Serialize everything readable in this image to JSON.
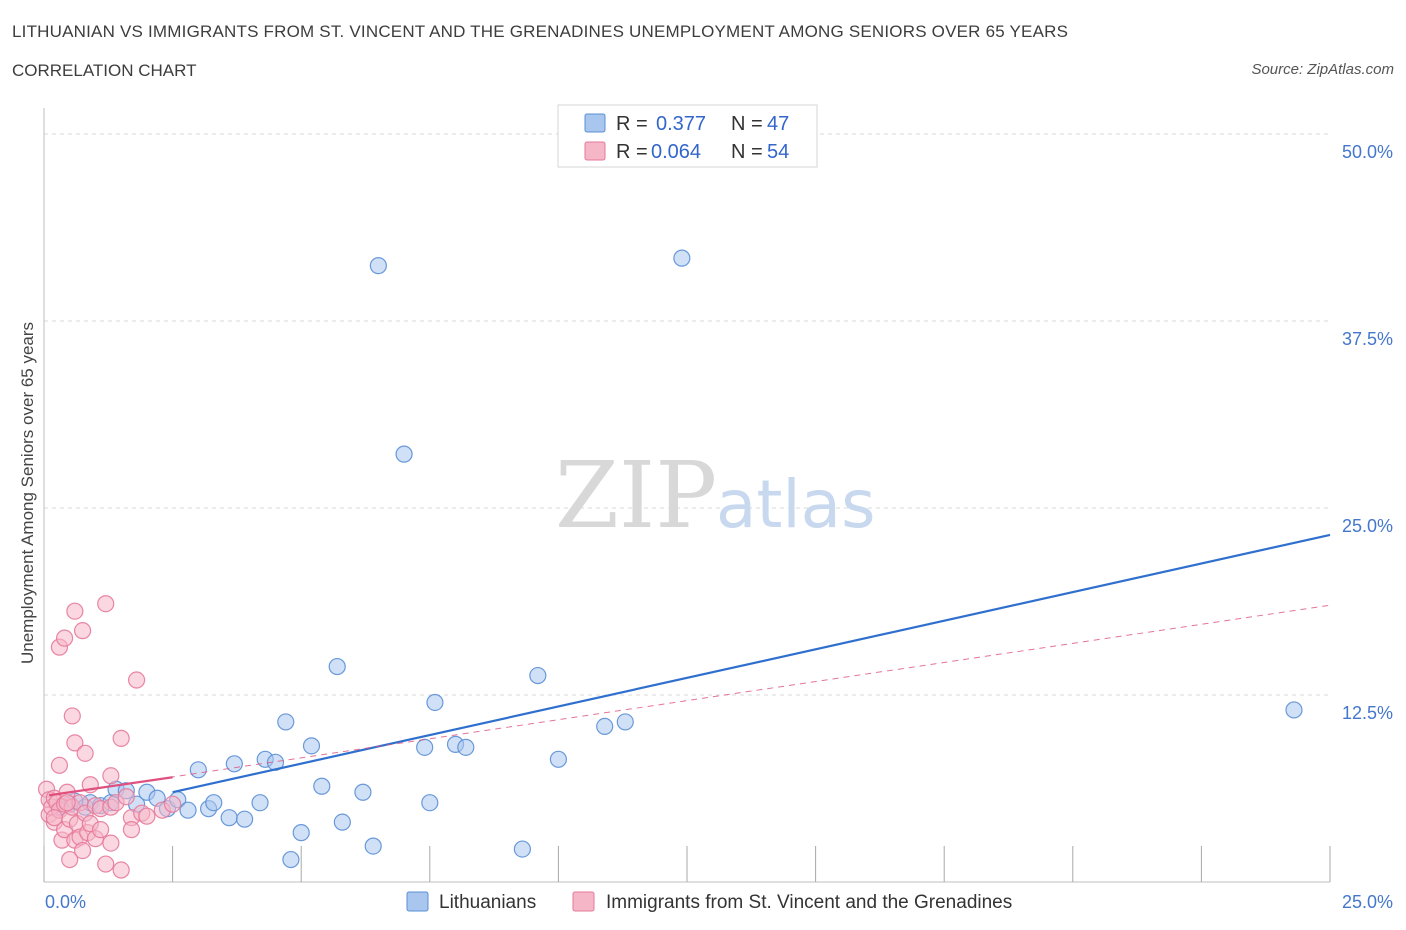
{
  "header": {
    "title": "LITHUANIAN VS IMMIGRANTS FROM ST. VINCENT AND THE GRENADINES UNEMPLOYMENT AMONG SENIORS OVER 65 YEARS",
    "subtitle": "CORRELATION CHART",
    "source": "Source: ZipAtlas.com"
  },
  "watermark": {
    "zip": "ZIP",
    "atlas": "atlas"
  },
  "colors": {
    "blue_fill": "#a9c6ee",
    "blue_stroke": "#5b8fd6",
    "blue_line": "#2f6fce",
    "pink_fill": "#f5b6c8",
    "pink_stroke": "#e57a9a",
    "pink_line": "#e0507e",
    "grid": "#d9d9d9",
    "axis_text": "#4477cc"
  },
  "legend": {
    "rows": [
      {
        "r_label": "R =",
        "r_value": "0.377",
        "n_label": "N =",
        "n_value": "47"
      },
      {
        "r_label": "R =",
        "r_value": "0.064",
        "n_label": "N =",
        "n_value": "54"
      }
    ]
  },
  "chart_data": {
    "type": "scatter",
    "title": "LITHUANIAN VS IMMIGRANTS FROM ST. VINCENT AND THE GRENADINES UNEMPLOYMENT AMONG SENIORS OVER 65 YEARS",
    "xlabel": "",
    "ylabel": "Unemployment Among Seniors over 65 years",
    "xlim": [
      0,
      25
    ],
    "ylim": [
      0,
      50
    ],
    "x_tick_labels": [
      "0.0%",
      "25.0%"
    ],
    "y_ticks": [
      12.5,
      25,
      37.5,
      50
    ],
    "y_tick_labels": [
      "12.5%",
      "25.0%",
      "37.5%",
      "50.0%"
    ],
    "grid": true,
    "series": [
      {
        "name": "Lithuanians",
        "color": "#a9c6ee",
        "r": 0.377,
        "n": 47,
        "trend": {
          "x": [
            2.5,
            25
          ],
          "y": [
            6.0,
            23.2
          ],
          "style": "solid"
        },
        "points": [
          [
            0.3,
            5.0
          ],
          [
            0.5,
            5.2
          ],
          [
            0.6,
            5.4
          ],
          [
            0.8,
            5.0
          ],
          [
            0.9,
            5.3
          ],
          [
            1.1,
            5.1
          ],
          [
            1.3,
            5.3
          ],
          [
            1.4,
            6.2
          ],
          [
            1.6,
            6.1
          ],
          [
            1.8,
            5.2
          ],
          [
            2.0,
            6.0
          ],
          [
            2.2,
            5.6
          ],
          [
            2.4,
            4.9
          ],
          [
            2.6,
            5.5
          ],
          [
            2.8,
            4.8
          ],
          [
            3.0,
            7.5
          ],
          [
            3.2,
            4.9
          ],
          [
            3.3,
            5.3
          ],
          [
            3.6,
            4.3
          ],
          [
            3.7,
            7.9
          ],
          [
            3.9,
            4.2
          ],
          [
            4.2,
            5.3
          ],
          [
            4.3,
            8.2
          ],
          [
            4.5,
            8.0
          ],
          [
            4.7,
            10.7
          ],
          [
            4.8,
            1.5
          ],
          [
            5.0,
            3.3
          ],
          [
            5.2,
            9.1
          ],
          [
            5.4,
            6.4
          ],
          [
            5.7,
            14.4
          ],
          [
            5.8,
            4.0
          ],
          [
            6.2,
            6.0
          ],
          [
            6.4,
            2.4
          ],
          [
            6.5,
            41.2
          ],
          [
            7.0,
            28.6
          ],
          [
            7.4,
            9.0
          ],
          [
            7.5,
            5.3
          ],
          [
            7.6,
            12.0
          ],
          [
            8.0,
            9.2
          ],
          [
            8.2,
            9.0
          ],
          [
            9.3,
            2.2
          ],
          [
            9.6,
            13.8
          ],
          [
            10.0,
            8.2
          ],
          [
            10.9,
            10.4
          ],
          [
            11.3,
            10.7
          ],
          [
            12.4,
            41.7
          ],
          [
            24.3,
            11.5
          ]
        ]
      },
      {
        "name": "Immigrants from St. Vincent and the Grenadines",
        "color": "#f5b6c8",
        "r": 0.064,
        "n": 54,
        "trend": {
          "x": [
            0.1,
            2.5
          ],
          "y": [
            5.8,
            7.0
          ],
          "style": "solid"
        },
        "trend_extended": {
          "x": [
            0.1,
            25
          ],
          "y": [
            5.8,
            18.5
          ],
          "style": "dashed"
        },
        "points": [
          [
            0.05,
            6.2
          ],
          [
            0.1,
            5.5
          ],
          [
            0.1,
            4.5
          ],
          [
            0.15,
            5.0
          ],
          [
            0.2,
            4.0
          ],
          [
            0.2,
            5.6
          ],
          [
            0.25,
            5.3
          ],
          [
            0.3,
            4.8
          ],
          [
            0.3,
            7.8
          ],
          [
            0.35,
            2.8
          ],
          [
            0.4,
            3.5
          ],
          [
            0.4,
            5.2
          ],
          [
            0.45,
            6.0
          ],
          [
            0.5,
            1.5
          ],
          [
            0.5,
            4.2
          ],
          [
            0.55,
            5.0
          ],
          [
            0.6,
            2.8
          ],
          [
            0.6,
            9.3
          ],
          [
            0.65,
            3.9
          ],
          [
            0.7,
            3.0
          ],
          [
            0.7,
            5.3
          ],
          [
            0.75,
            2.1
          ],
          [
            0.8,
            8.6
          ],
          [
            0.8,
            4.6
          ],
          [
            0.85,
            3.3
          ],
          [
            0.9,
            6.5
          ],
          [
            0.9,
            3.9
          ],
          [
            1.0,
            5.1
          ],
          [
            1.0,
            2.9
          ],
          [
            1.1,
            4.9
          ],
          [
            1.1,
            3.5
          ],
          [
            1.2,
            1.2
          ],
          [
            1.3,
            2.6
          ],
          [
            1.3,
            5.0
          ],
          [
            1.4,
            5.3
          ],
          [
            1.5,
            0.8
          ],
          [
            1.5,
            9.6
          ],
          [
            1.6,
            5.7
          ],
          [
            1.7,
            4.3
          ],
          [
            1.7,
            3.5
          ],
          [
            1.8,
            13.5
          ],
          [
            1.9,
            4.6
          ],
          [
            2.0,
            4.4
          ],
          [
            2.3,
            4.8
          ],
          [
            2.5,
            5.2
          ],
          [
            0.3,
            15.7
          ],
          [
            0.4,
            16.3
          ],
          [
            0.55,
            11.1
          ],
          [
            0.6,
            18.1
          ],
          [
            0.75,
            16.8
          ],
          [
            1.2,
            18.6
          ],
          [
            1.3,
            7.1
          ],
          [
            0.2,
            4.3
          ],
          [
            0.45,
            5.3
          ]
        ]
      }
    ]
  },
  "bottom_legend": {
    "items": [
      {
        "label": "Lithuanians"
      },
      {
        "label": "Immigrants from St. Vincent and the Grenadines"
      }
    ]
  }
}
